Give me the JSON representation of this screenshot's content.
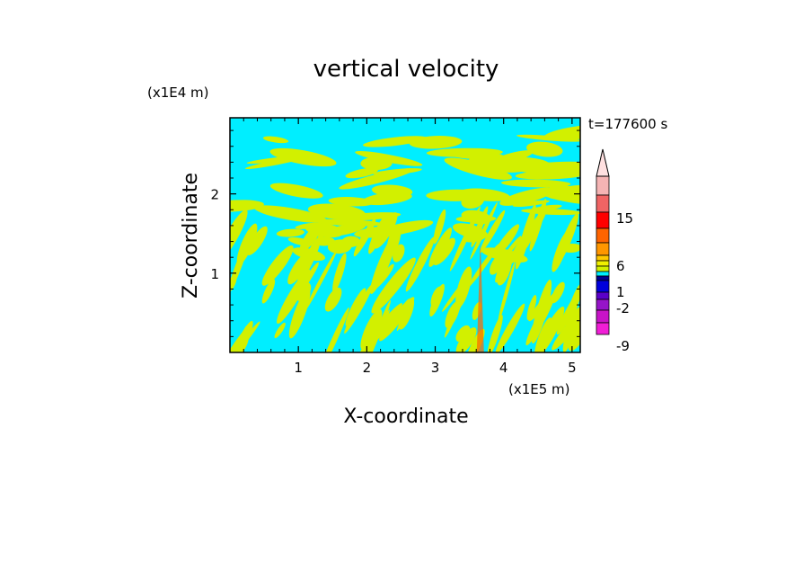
{
  "chart_data": {
    "type": "heatmap",
    "title": "vertical velocity",
    "xlabel": "X-coordinate",
    "ylabel": "Z-coordinate",
    "x_unit": "(x1E5 m)",
    "y_unit": "(x1E4 m)",
    "xlim": [
      0,
      5.12
    ],
    "ylim": [
      0,
      2.96
    ],
    "x_ticks": [
      1,
      2,
      3,
      4,
      5
    ],
    "x_tick_labels": [
      "1",
      "2",
      "3",
      "4",
      "5"
    ],
    "y_ticks": [
      1,
      2
    ],
    "y_tick_labels": [
      "1",
      "2"
    ],
    "time_label": "t=177600 s",
    "field_description": "Banded vertical velocity field; cyan (slightly negative) and yellow (slightly positive) regions dominate, narrow strong updraft core near x=3.65",
    "colorbar": {
      "levels": [
        "-9",
        "-2",
        "1",
        "6",
        "15"
      ],
      "colors": [
        "#f01ed6",
        "#c814c8",
        "#9614c8",
        "#5a00c8",
        "#0000dc",
        "#00008c",
        "#00eeff",
        "#d2f000",
        "#f0f000",
        "#ffc800",
        "#ff9600",
        "#ff6400",
        "#ff0000",
        "#f06464",
        "#f5b4b4"
      ],
      "extend": "max",
      "arrow_color": "#ffe0e0"
    },
    "palette": {
      "background_field": "#00eeff",
      "positive_field": "#d2f000",
      "updraft_core": "#ff6400",
      "axes": "#000000"
    }
  }
}
